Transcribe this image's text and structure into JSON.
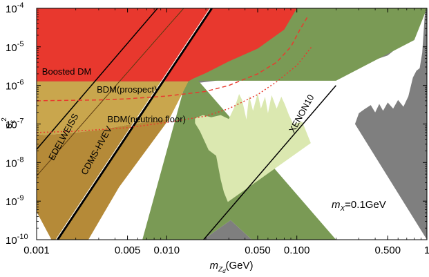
{
  "chart_data": {
    "type": "area",
    "xscale": "log",
    "yscale": "log",
    "xlim": [
      0.001,
      1
    ],
    "ylim": [
      1e-10,
      0.0001
    ],
    "xlabel": {
      "base": "m",
      "sub1": "Z",
      "sub2": "d",
      "unit": "(GeV)"
    },
    "ylabel": {
      "base": "s",
      "sub": "ε",
      "sup": "2"
    },
    "x_ticks": [
      {
        "value": 0.001,
        "label": "0.001"
      },
      {
        "value": 0.005,
        "label": "0.005"
      },
      {
        "value": 0.01,
        "label": "0.010"
      },
      {
        "value": 0.05,
        "label": "0.050"
      },
      {
        "value": 0.1,
        "label": "0.100"
      },
      {
        "value": 0.5,
        "label": "0.500"
      },
      {
        "value": 1,
        "label": "1"
      }
    ],
    "y_ticks": [
      {
        "value": 1e-10,
        "mant": "10",
        "exp": "-10"
      },
      {
        "value": 1e-09,
        "mant": "10",
        "exp": "-9"
      },
      {
        "value": 1e-08,
        "mant": "10",
        "exp": "-8"
      },
      {
        "value": 1e-07,
        "mant": "10",
        "exp": "-7"
      },
      {
        "value": 1e-06,
        "mant": "10",
        "exp": "-6"
      },
      {
        "value": 1e-05,
        "mant": "10",
        "exp": "-5"
      },
      {
        "value": 0.0001,
        "mant": "10",
        "exp": "-4"
      }
    ],
    "annotation": {
      "base": "m",
      "sub": "X",
      "value": "=0.1GeV"
    },
    "regions": [
      {
        "name": "XENON10",
        "color": "#7f7f7f",
        "points": [
          [
            0.019,
            1e-10
          ],
          [
            0.031,
            3.2e-10
          ],
          [
            0.045,
            1e-10
          ]
        ]
      },
      {
        "name": "XENON10",
        "color": "#7f7f7f",
        "points": [
          [
            0.28,
            1e-07
          ],
          [
            0.3,
            1.9e-07
          ],
          [
            0.33,
            2.4e-07
          ],
          [
            0.37,
            3.1e-07
          ],
          [
            0.4,
            2e-07
          ],
          [
            0.43,
            3.3e-07
          ],
          [
            0.46,
            2.2e-07
          ],
          [
            0.5,
            3.6e-07
          ],
          [
            0.55,
            2.5e-07
          ],
          [
            0.6,
            4.2e-07
          ],
          [
            0.66,
            2.8e-07
          ],
          [
            0.72,
            5.2e-07
          ],
          [
            0.78,
            1.6e-06
          ],
          [
            0.83,
            2.4e-06
          ],
          [
            0.88,
            2.8e-06
          ],
          [
            0.92,
            7e-06
          ],
          [
            0.95,
            3.5e-05
          ],
          [
            0.97,
            0.0001
          ],
          [
            1,
            0.0001
          ],
          [
            1,
            1e-10
          ]
        ]
      },
      {
        "name": "XENON10",
        "color": "#7f7f7f",
        "points": [
          [
            0.012,
            1e-06
          ],
          [
            0.025,
            1.35e-06
          ],
          [
            0.05,
            1.6e-06
          ],
          [
            0.1,
            1.9e-06
          ],
          [
            0.2,
            2.5e-06
          ],
          [
            0.35,
            4e-06
          ],
          [
            0.5,
            6e-06
          ],
          [
            0.7,
            1.5e-05
          ],
          [
            0.8,
            0.0001
          ],
          [
            0.001,
            0.0001
          ],
          [
            0.001,
            1.25e-06
          ],
          [
            0.006,
            1.1e-06
          ]
        ]
      },
      {
        "name": "XENON10",
        "color": "#7a9a55",
        "points": [
          [
            0.0175,
            1.32e-06
          ],
          [
            0.2,
            1.32e-06
          ],
          [
            0.8,
            1.5e-05
          ],
          [
            1.0,
            0.0001
          ],
          [
            0.02,
            0.0001
          ],
          [
            0.0065,
            1e-10
          ],
          [
            0.019,
            1e-10
          ],
          [
            0.031,
            3.2e-10
          ],
          [
            0.045,
            1e-10
          ],
          [
            0.2,
            1e-10
          ]
        ]
      },
      {
        "name": "XENON10",
        "color": "#dbe8b0",
        "points": [
          [
            0.0165,
            1.4e-07
          ],
          [
            0.019,
            1.7e-07
          ],
          [
            0.022,
            1.5e-07
          ],
          [
            0.026,
            1.7e-07
          ],
          [
            0.03,
            1.35e-07
          ],
          [
            0.034,
            3.3e-07
          ],
          [
            0.036,
            6e-07
          ],
          [
            0.038,
            4.2e-07
          ],
          [
            0.041,
            1.3e-07
          ],
          [
            0.043,
            5.5e-07
          ],
          [
            0.046,
            2.2e-07
          ],
          [
            0.05,
            6.2e-07
          ],
          [
            0.053,
            2.5e-07
          ],
          [
            0.057,
            5.1e-07
          ],
          [
            0.06,
            1.9e-07
          ],
          [
            0.064,
            5.6e-07
          ],
          [
            0.07,
            2.5e-07
          ],
          [
            0.076,
            5.1e-07
          ],
          [
            0.081,
            3.2e-07
          ],
          [
            0.087,
            1.7e-07
          ],
          [
            0.094,
            1e-07
          ],
          [
            0.11,
            1.15e-07
          ],
          [
            0.128,
            3.2e-08
          ],
          [
            0.0295,
            9.5e-10
          ],
          [
            0.0275,
            1.7e-09
          ],
          [
            0.026,
            3.6e-09
          ],
          [
            0.024,
            1.5e-08
          ],
          [
            0.021,
            2.1e-08
          ],
          [
            0.018,
            6.5e-08
          ],
          [
            0.0165,
            1.05e-07
          ]
        ]
      },
      {
        "name": "EDELWEISS",
        "color": "#b58a38",
        "points": [
          [
            0.001,
            5.5e-08
          ],
          [
            0.00115,
            5.2e-08
          ],
          [
            0.002,
            6e-08
          ],
          [
            0.003,
            7e-08
          ],
          [
            0.005,
            9.5e-08
          ],
          [
            0.008,
            1.2e-07
          ],
          [
            0.0105,
            1.38e-07
          ],
          [
            0.0043,
            2.3e-09
          ],
          [
            0.0025,
            1e-10
          ],
          [
            0.0013,
            1e-10
          ],
          [
            0.001,
            5.3e-10
          ]
        ]
      },
      {
        "name": "EDELWEISS",
        "color": "#c9a64d",
        "points": [
          [
            0.001,
            5.5e-08
          ],
          [
            0.00115,
            5.2e-08
          ],
          [
            0.002,
            6e-08
          ],
          [
            0.003,
            7e-08
          ],
          [
            0.005,
            9.5e-08
          ],
          [
            0.008,
            1.2e-07
          ],
          [
            0.0105,
            1.38e-07
          ],
          [
            0.0147,
            1.28e-06
          ],
          [
            0.001,
            1.28e-06
          ]
        ]
      },
      {
        "name": "Boosted DM",
        "color": "#e8382e",
        "points": [
          [
            0.001,
            1.28e-06
          ],
          [
            0.0147,
            1.28e-06
          ],
          [
            0.016,
            1.5e-06
          ],
          [
            0.02,
            2.1e-06
          ],
          [
            0.03,
            4.2e-06
          ],
          [
            0.05,
            9e-06
          ],
          [
            0.08,
            2.8e-05
          ],
          [
            0.1,
            0.0001
          ],
          [
            0.001,
            0.0001
          ]
        ]
      }
    ],
    "lines": [
      {
        "name": "EDELWEISS",
        "color": "#000000",
        "points": [
          [
            0.001,
            2.2e-08
          ],
          [
            0.0085,
            0.0001
          ]
        ]
      },
      {
        "name": "EDELWEISS",
        "color": "#5a3a10",
        "points": [
          [
            0.001,
            4.5e-09
          ],
          [
            0.0135,
            0.0001
          ]
        ]
      },
      {
        "name": "CDMS-HVEV",
        "color": "#000000",
        "points": [
          [
            0.00145,
            1e-10
          ],
          [
            0.0222,
            0.0001
          ]
        ]
      },
      {
        "name": "XENON10",
        "color": "#000000",
        "points": [
          [
            0.0192,
            1e-10
          ],
          [
            0.2,
            1e-06
          ]
        ]
      }
    ],
    "dashed_lines": [
      {
        "name": "BDM(prospect)",
        "color": "#e83a2e",
        "dash": "dash",
        "points": [
          [
            0.001,
            4e-07
          ],
          [
            0.003,
            4.2e-07
          ],
          [
            0.005,
            4.5e-07
          ],
          [
            0.01,
            5.3e-07
          ],
          [
            0.02,
            7e-07
          ],
          [
            0.03,
            1e-06
          ],
          [
            0.05,
            2e-06
          ],
          [
            0.07,
            4e-06
          ],
          [
            0.09,
            1e-05
          ],
          [
            0.105,
            2.7e-05
          ],
          [
            0.12,
            5.8e-05
          ]
        ]
      },
      {
        "name": "BDM(neutrino floor)",
        "color": "#e83a2e",
        "dash": "dot",
        "points": [
          [
            0.001,
            6e-08
          ],
          [
            0.002,
            6.5e-08
          ],
          [
            0.005,
            8e-08
          ],
          [
            0.01,
            1.1e-07
          ],
          [
            0.02,
            1.6e-07
          ],
          [
            0.03,
            2.5e-07
          ],
          [
            0.05,
            5.8e-07
          ],
          [
            0.07,
            1.25e-06
          ],
          [
            0.1,
            3.3e-06
          ],
          [
            0.13,
            1e-05
          ]
        ]
      }
    ],
    "region_labels": [
      {
        "text": "Boosted DM",
        "x": 0.0011,
        "y": 1.9e-06,
        "rotate": 0
      },
      {
        "text": "BDM(prospect)",
        "x": 0.0029,
        "y": 6.5e-07,
        "rotate": 0
      },
      {
        "text": "BDM(neutrino floor)",
        "x": 0.0035,
        "y": 1.1e-07,
        "rotate": 0
      },
      {
        "text": "EDELWEISS",
        "x": 0.00135,
        "y": 1.1e-08,
        "rotate": -61
      },
      {
        "text": "CDMS-HVEV",
        "x": 0.0024,
        "y": 4.6e-09,
        "rotate": -61
      },
      {
        "text": "XENON10",
        "x": 0.095,
        "y": 5.7e-08,
        "rotate": -61
      }
    ]
  }
}
